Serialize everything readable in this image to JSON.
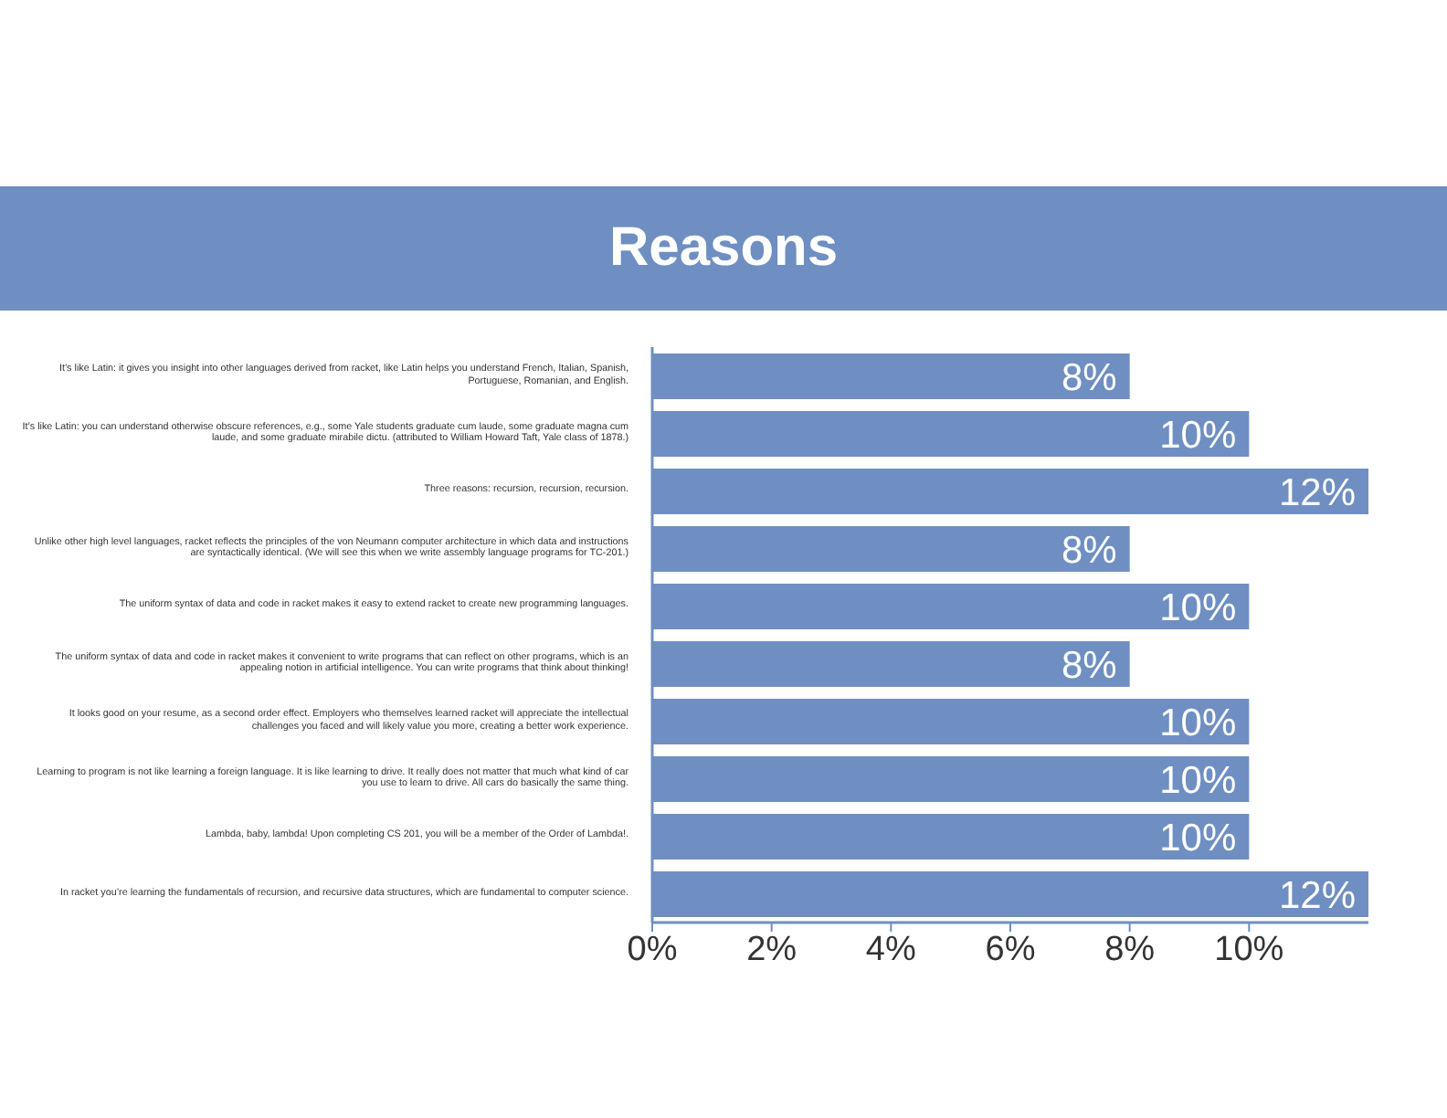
{
  "chart_data": {
    "type": "bar",
    "orientation": "horizontal",
    "title": "Reasons",
    "categories": [
      "It’s like Latin: it gives you insight into other languages derived from racket, like Latin helps you understand French, Italian, Spanish, Portuguese, Romanian, and English.",
      "It’s like Latin: you can understand otherwise obscure references, e.g., some Yale students graduate cum laude, some graduate magna cum laude, and some graduate mirabile dictu. (attributed to William Howard Taft, Yale class of 1878.)",
      "Three reasons: recursion, recursion, recursion.",
      "Unlike other high level languages, racket reflects the principles of the von Neumann computer architecture in which data and instructions are syntactically identical. (We will see this when we write assembly language programs for TC-201.)",
      "The uniform syntax of data and code in racket makes it easy to extend racket to create new programming languages.",
      "The uniform syntax of data and code in racket makes it convenient to write programs that can reflect on other programs, which is an appealing notion in artificial intelligence. You can write programs that think about thinking!",
      "It looks good on your resume, as a second order effect. Employers who themselves learned racket will appreciate the intellectual challenges you faced and will likely value you more, creating a better work experience.",
      "Learning to program is not like learning a foreign language. It is like learning to drive. It really does not matter that much what kind of car you use to learn to drive. All cars do basically the same thing.",
      "Lambda, baby, lambda! Upon completing CS 201, you will be a member of the Order of Lambda!.",
      "In racket you’re learning the fundamentals of recursion, and recursive data structures, which are fundamental to computer science."
    ],
    "values": [
      8,
      10,
      12,
      8,
      10,
      8,
      10,
      10,
      10,
      12
    ],
    "value_labels": [
      "8%",
      "10%",
      "12%",
      "8%",
      "10%",
      "8%",
      "10%",
      "10%",
      "10%",
      "12%"
    ],
    "color": "#6f8fc2",
    "xlim": [
      0,
      12
    ],
    "xticks": [
      {
        "value": 0,
        "label": "0%"
      },
      {
        "value": 2,
        "label": "2%"
      },
      {
        "value": 4,
        "label": "4%"
      },
      {
        "value": 6,
        "label": "6%"
      },
      {
        "value": 8,
        "label": "8%"
      },
      {
        "value": 10,
        "label": "10%"
      }
    ]
  }
}
